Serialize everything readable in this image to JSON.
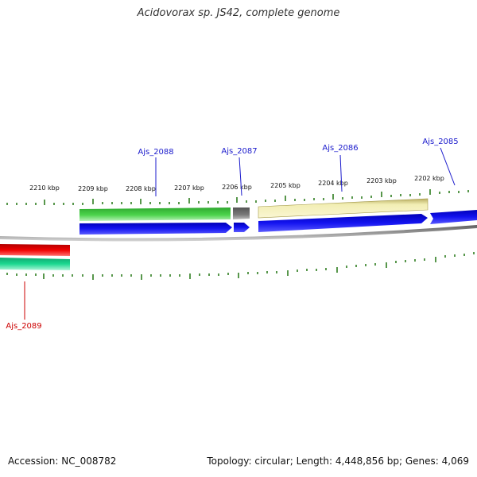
{
  "title": "Acidovorax sp. JS42, complete genome",
  "footer": {
    "accession": "Accession: NC_008782",
    "topology": "Topology: circular; Length: 4,448,856 bp; Genes: 4,069"
  },
  "colors": {
    "ruler_tick": "#2e7d1f",
    "backbone": "#888888",
    "label_blue": "#1a1acc",
    "label_red": "#cc0000",
    "tick_label": "#111111"
  },
  "scale": {
    "unit": "kbp",
    "labels": [
      "2210 kbp",
      "2209 kbp",
      "2208 kbp",
      "2207 kbp",
      "2206 kbp",
      "2205 kbp",
      "2204 kbp",
      "2203 kbp",
      "2202 kbp"
    ]
  },
  "genes": [
    {
      "id": "Ajs_2088",
      "color": "blue"
    },
    {
      "id": "Ajs_2087",
      "color": "blue"
    },
    {
      "id": "Ajs_2086",
      "color": "blue"
    },
    {
      "id": "Ajs_2085",
      "color": "blue"
    },
    {
      "id": "Ajs_2089",
      "color": "red"
    }
  ],
  "features": [
    {
      "name": "green-cds-feature",
      "color": "#3cb83c"
    },
    {
      "name": "gray-cds-feature",
      "color": "#6e6e6e"
    },
    {
      "name": "yellow-cds-feature",
      "color": "#ece8a8"
    },
    {
      "name": "blue-cds-arrow",
      "color": "#1010e0"
    },
    {
      "name": "red-cds-feature",
      "color": "#ee0000"
    },
    {
      "name": "teal-cds-feature",
      "color": "#19d28c"
    }
  ]
}
